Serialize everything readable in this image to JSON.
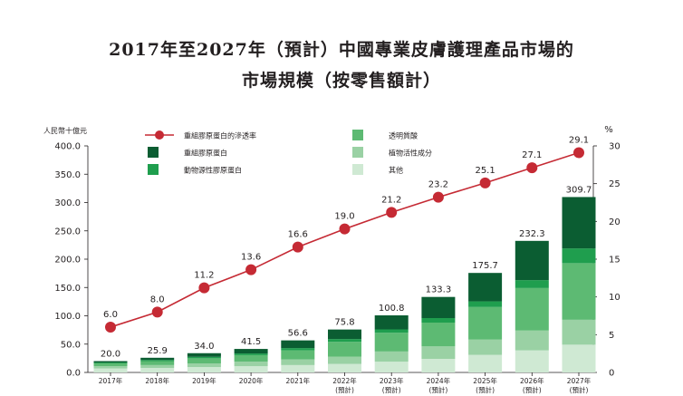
{
  "title_line1": "2017年至2027年（預計）中國專業皮膚護理產品市場的",
  "title_line2": "市場規模（按零售額計）",
  "chart_data": {
    "type": "bar",
    "stacked": true,
    "categories": [
      "2017年",
      "2018年",
      "2019年",
      "2020年",
      "2021年",
      "2022年",
      "2023年",
      "2024年",
      "2025年",
      "2026年",
      "2027年"
    ],
    "category_sublabels": [
      "",
      "",
      "",
      "",
      "",
      "(預計)",
      "(預計)",
      "(預計)",
      "(預計)",
      "(預計)",
      "(預計)"
    ],
    "left_axis": {
      "unit_label": "人民幣十億元",
      "range": [
        0,
        400
      ],
      "ticks": [
        "0.0",
        "50.0",
        "100.0",
        "150.0",
        "200.0",
        "250.0",
        "300.0",
        "350.0",
        "400.0"
      ]
    },
    "right_axis": {
      "unit_label": "%",
      "range": [
        0,
        30
      ],
      "ticks": [
        "0",
        "5",
        "10",
        "15",
        "20",
        "25",
        "30"
      ]
    },
    "totals": [
      20.0,
      25.9,
      34.0,
      41.5,
      56.6,
      75.8,
      100.8,
      133.3,
      175.7,
      232.3,
      309.7
    ],
    "total_labels": [
      "20.0",
      "25.9",
      "34.0",
      "41.5",
      "56.6",
      "75.8",
      "100.8",
      "133.3",
      "175.7",
      "232.3",
      "309.7"
    ],
    "series": [
      {
        "name": "其他",
        "color": "#cfe9d3",
        "values": [
          7.0,
          8.0,
          9.5,
          11.0,
          13.0,
          15.0,
          19.0,
          24.0,
          31.0,
          39.0,
          49.0
        ]
      },
      {
        "name": "植物活性成分",
        "color": "#9ad1a4",
        "values": [
          4.0,
          5.0,
          6.5,
          8.0,
          10.0,
          13.0,
          18.0,
          22.0,
          27.0,
          35.0,
          44.0
        ]
      },
      {
        "name": "透明質酸",
        "color": "#5dba73",
        "values": [
          5.0,
          7.0,
          9.0,
          11.5,
          16.0,
          26.0,
          33.0,
          42.0,
          57.5,
          75.0,
          100.0
        ]
      },
      {
        "name": "動物源性膠原蛋白",
        "color": "#1f9e4e",
        "values": [
          1.5,
          2.0,
          2.5,
          3.0,
          4.0,
          5.0,
          6.0,
          8.0,
          10.0,
          14.0,
          26.0
        ]
      },
      {
        "name": "重組膠原蛋白",
        "color": "#0b5d32",
        "values": [
          2.5,
          3.9,
          6.5,
          8.0,
          13.6,
          16.8,
          24.8,
          37.3,
          50.2,
          69.3,
          90.7
        ]
      }
    ],
    "line": {
      "name": "重組膠原蛋白的滲透率",
      "color": "#c52a34",
      "axis": "right",
      "values": [
        6.0,
        8.0,
        11.2,
        13.6,
        16.6,
        19.0,
        21.2,
        23.2,
        25.1,
        27.1,
        29.1
      ],
      "labels": [
        "6.0",
        "8.0",
        "11.2",
        "13.6",
        "16.6",
        "19.0",
        "21.2",
        "23.2",
        "25.1",
        "27.1",
        "29.1"
      ]
    },
    "legend_placement": "top",
    "grid": false
  }
}
